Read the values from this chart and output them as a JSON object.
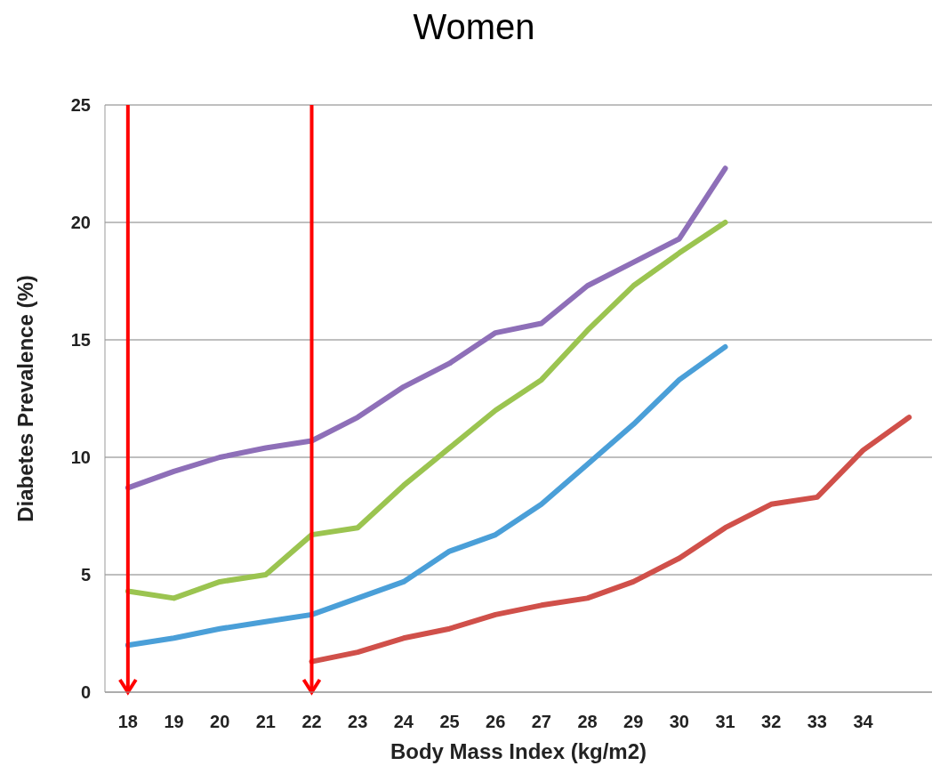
{
  "chart_data": {
    "type": "line",
    "title": "Women",
    "xlabel": "Body Mass Index (kg/m2)",
    "ylabel": "Diabetes Prevalence (%)",
    "x": [
      18,
      19,
      20,
      21,
      22,
      23,
      24,
      25,
      26,
      27,
      28,
      29,
      30,
      31,
      32,
      33,
      34,
      35
    ],
    "xlim": [
      17.5,
      35.5
    ],
    "xticks": [
      18,
      19,
      20,
      21,
      22,
      23,
      24,
      25,
      26,
      27,
      28,
      29,
      30,
      31,
      32,
      33,
      34
    ],
    "ylim": [
      0,
      25
    ],
    "yticks": [
      0,
      5,
      10,
      15,
      20,
      25
    ],
    "grid": "y",
    "legend": false,
    "marker": "none",
    "line_style": "solid",
    "series": [
      {
        "color": "#8e6fb8",
        "values": [
          8.7,
          9.4,
          10.0,
          10.4,
          10.7,
          11.7,
          13.0,
          14.0,
          15.3,
          15.7,
          17.3,
          18.3,
          19.3,
          22.3,
          null,
          null,
          null,
          null
        ]
      },
      {
        "color": "#9bc450",
        "values": [
          4.3,
          4.0,
          4.7,
          5.0,
          6.7,
          7.0,
          8.8,
          10.4,
          12.0,
          13.3,
          15.4,
          17.3,
          18.7,
          20.0,
          null,
          null,
          null,
          null
        ]
      },
      {
        "color": "#4a9fd8",
        "values": [
          2.0,
          2.3,
          2.7,
          3.0,
          3.3,
          4.0,
          4.7,
          6.0,
          6.7,
          8.0,
          9.7,
          11.4,
          13.3,
          14.7,
          null,
          null,
          null,
          null
        ]
      },
      {
        "color": "#d0504a",
        "values": [
          null,
          null,
          null,
          null,
          1.3,
          1.7,
          2.3,
          2.7,
          3.3,
          3.7,
          4.0,
          4.7,
          5.7,
          7.0,
          8.0,
          8.3,
          10.3,
          11.7
        ]
      }
    ],
    "ref_lines": [
      {
        "axis": "x",
        "value": 18,
        "color": "#ff0000"
      },
      {
        "axis": "x",
        "value": 22,
        "color": "#ff0000"
      }
    ]
  }
}
